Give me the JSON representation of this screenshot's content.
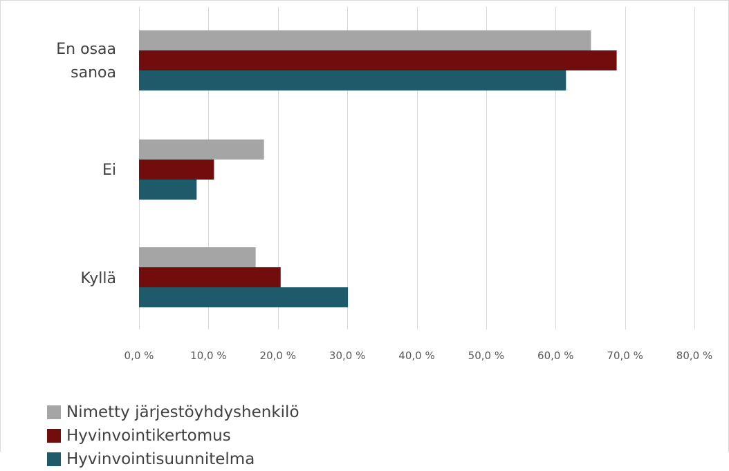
{
  "chart_data": {
    "type": "bar",
    "orientation": "horizontal",
    "categories": [
      "En osaa sanoa",
      "Ei",
      "Kyllä"
    ],
    "category_labels": [
      [
        "En osaa",
        "sanoa"
      ],
      [
        "Ei"
      ],
      [
        "Kyllä"
      ]
    ],
    "series": [
      {
        "name": "Nimetty järjestöyhdyshenkilö",
        "color": "#a5a5a5",
        "values": [
          65.1,
          18.0,
          16.8
        ]
      },
      {
        "name": "Hyvinvointikertomus",
        "color": "#720d0d",
        "values": [
          68.8,
          10.8,
          20.4
        ]
      },
      {
        "name": "Hyvinvointisuunnitelma",
        "color": "#1f5a6b",
        "values": [
          61.5,
          8.3,
          30.1
        ]
      }
    ],
    "xlim": [
      0,
      80
    ],
    "x_ticks": [
      "0,0 %",
      "10,0 %",
      "20,0 %",
      "30,0 %",
      "40,0 %",
      "50,0 %",
      "60,0 %",
      "70,0 %",
      "80,0 %"
    ],
    "grid": true,
    "legend_position": "bottom-left",
    "title": "",
    "xlabel": "",
    "ylabel": ""
  }
}
